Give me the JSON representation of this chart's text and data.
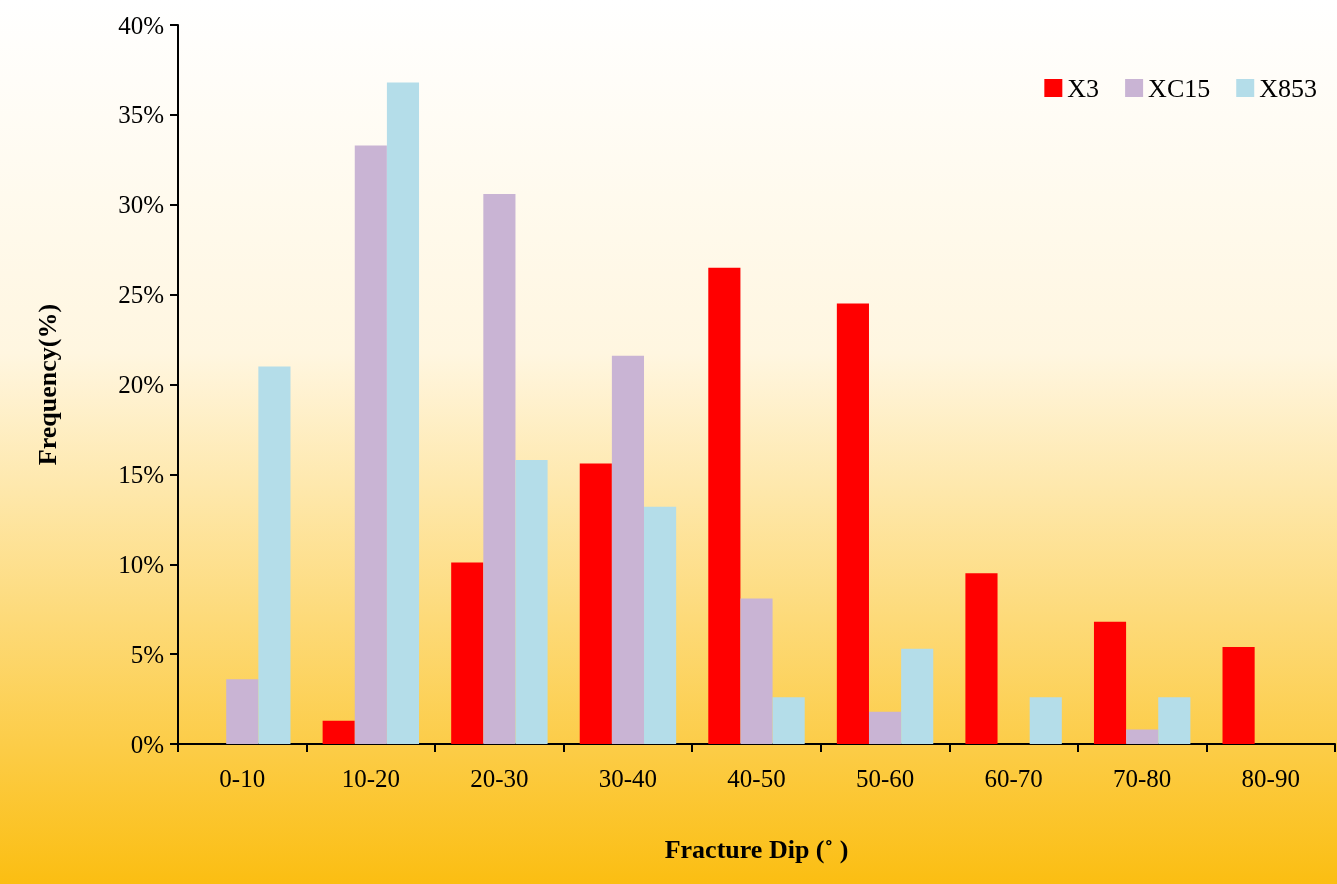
{
  "chart_data": {
    "type": "bar",
    "xlabel": "Fracture Dip (˚ )",
    "ylabel": "Frequency(%)",
    "categories": [
      "0-10",
      "10-20",
      "20-30",
      "30-40",
      "40-50",
      "50-60",
      "60-70",
      "70-80",
      "80-90"
    ],
    "series": [
      {
        "name": "X3",
        "color": "#ff0000",
        "values": [
          0,
          1.3,
          10.1,
          15.6,
          26.5,
          24.5,
          9.5,
          6.8,
          5.4
        ]
      },
      {
        "name": "XC15",
        "color": "#c9b4d4",
        "values": [
          3.6,
          33.3,
          30.6,
          21.6,
          8.1,
          1.8,
          0,
          0.8,
          0
        ]
      },
      {
        "name": "X853",
        "color": "#b4dde9",
        "values": [
          21.0,
          36.8,
          15.8,
          13.2,
          2.6,
          5.3,
          2.6,
          2.6,
          0
        ]
      }
    ],
    "ylim": [
      0,
      40
    ],
    "yticks": [
      {
        "value": 0,
        "label": "0%"
      },
      {
        "value": 5,
        "label": "5%"
      },
      {
        "value": 10,
        "label": "10%"
      },
      {
        "value": 15,
        "label": "15%"
      },
      {
        "value": 20,
        "label": "20%"
      },
      {
        "value": 25,
        "label": "25%"
      },
      {
        "value": 30,
        "label": "30%"
      },
      {
        "value": 35,
        "label": "35%"
      },
      {
        "value": 40,
        "label": "40%"
      }
    ],
    "grid": false,
    "legend": "top right"
  }
}
